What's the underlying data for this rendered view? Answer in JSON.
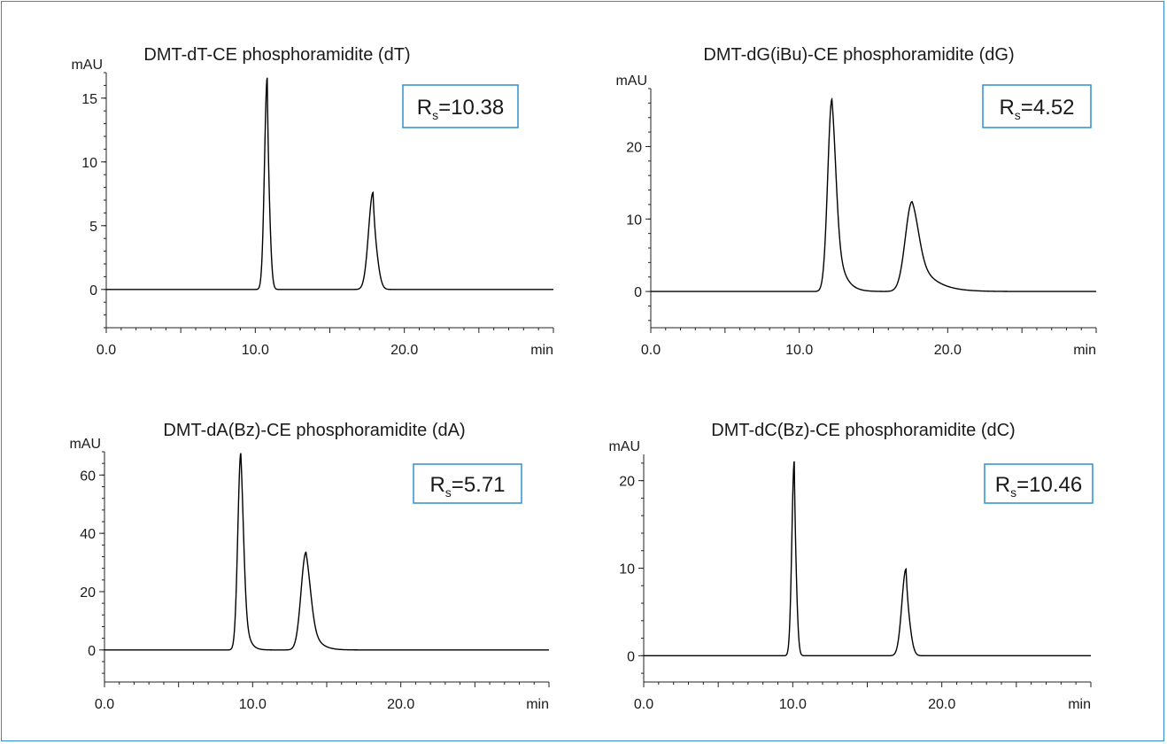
{
  "colors": {
    "frame": "#2f8fd0",
    "rs_box": "#2f8fd0",
    "trace": "#000000"
  },
  "chart_data": [
    {
      "type": "line",
      "title": "DMT-dT-CE phosphoramidite (dT)",
      "xlabel": "min",
      "ylabel": "mAU",
      "xlim": [
        0,
        30
      ],
      "ylim": [
        -3,
        17
      ],
      "xticks": [
        0,
        10,
        20
      ],
      "xtick_labels": [
        "0.0",
        "10.0",
        "20.0"
      ],
      "yticks": [
        0,
        5,
        10,
        15
      ],
      "ytick_labels": [
        "0",
        "5",
        "10",
        "15"
      ],
      "grid": false,
      "annotation": {
        "main": "R",
        "sub": "s",
        "value": "=10.38"
      },
      "peaks": [
        {
          "rt": 10.8,
          "height": 16.6,
          "width": 0.18,
          "tail": 0.08
        },
        {
          "rt": 17.9,
          "height": 7.6,
          "width": 0.3,
          "tail": 0.12
        }
      ]
    },
    {
      "type": "line",
      "title": "DMT-dG(iBu)-CE phosphoramidite (dG)",
      "xlabel": "min",
      "ylabel": "mAU",
      "xlim": [
        0,
        30
      ],
      "ylim": [
        -5,
        28
      ],
      "xticks": [
        0,
        10,
        20
      ],
      "xtick_labels": [
        "0.0",
        "10.0",
        "20.0"
      ],
      "yticks": [
        0,
        10,
        20
      ],
      "ytick_labels": [
        "0",
        "10",
        "20"
      ],
      "grid": false,
      "annotation": {
        "main": "R",
        "sub": "s",
        "value": "=4.52"
      },
      "peaks": [
        {
          "rt": 12.2,
          "height": 26.5,
          "width": 0.28,
          "tail": 0.55
        },
        {
          "rt": 17.6,
          "height": 12.4,
          "width": 0.45,
          "tail": 1.2
        }
      ]
    },
    {
      "type": "line",
      "title": "DMT-dA(Bz)-CE phosphoramidite (dA)",
      "xlabel": "min",
      "ylabel": "mAU",
      "xlim": [
        0,
        30
      ],
      "ylim": [
        -11,
        68
      ],
      "xticks": [
        0,
        10,
        20
      ],
      "xtick_labels": [
        "0.0",
        "10.0",
        "20.0"
      ],
      "yticks": [
        0,
        20,
        40,
        60
      ],
      "ytick_labels": [
        "0",
        "20",
        "40",
        "60"
      ],
      "grid": false,
      "annotation": {
        "main": "R",
        "sub": "s",
        "value": "=5.71"
      },
      "peaks": [
        {
          "rt": 9.2,
          "height": 67.5,
          "width": 0.2,
          "tail": 0.3
        },
        {
          "rt": 13.6,
          "height": 33.5,
          "width": 0.33,
          "tail": 0.55
        }
      ]
    },
    {
      "type": "line",
      "title": "DMT-dC(Bz)-CE phosphoramidite (dC)",
      "xlabel": "min",
      "ylabel": "mAU",
      "xlim": [
        0,
        30
      ],
      "ylim": [
        -3,
        23
      ],
      "xticks": [
        0,
        10,
        20
      ],
      "xtick_labels": [
        "0.0",
        "10.0",
        "20.0"
      ],
      "yticks": [
        0,
        10,
        20
      ],
      "ytick_labels": [
        "0",
        "10",
        "20"
      ],
      "grid": false,
      "annotation": {
        "main": "R",
        "sub": "s",
        "value": "=10.46"
      },
      "peaks": [
        {
          "rt": 10.1,
          "height": 22.2,
          "width": 0.16,
          "tail": 0.08
        },
        {
          "rt": 17.6,
          "height": 9.9,
          "width": 0.28,
          "tail": 0.12
        }
      ]
    }
  ]
}
